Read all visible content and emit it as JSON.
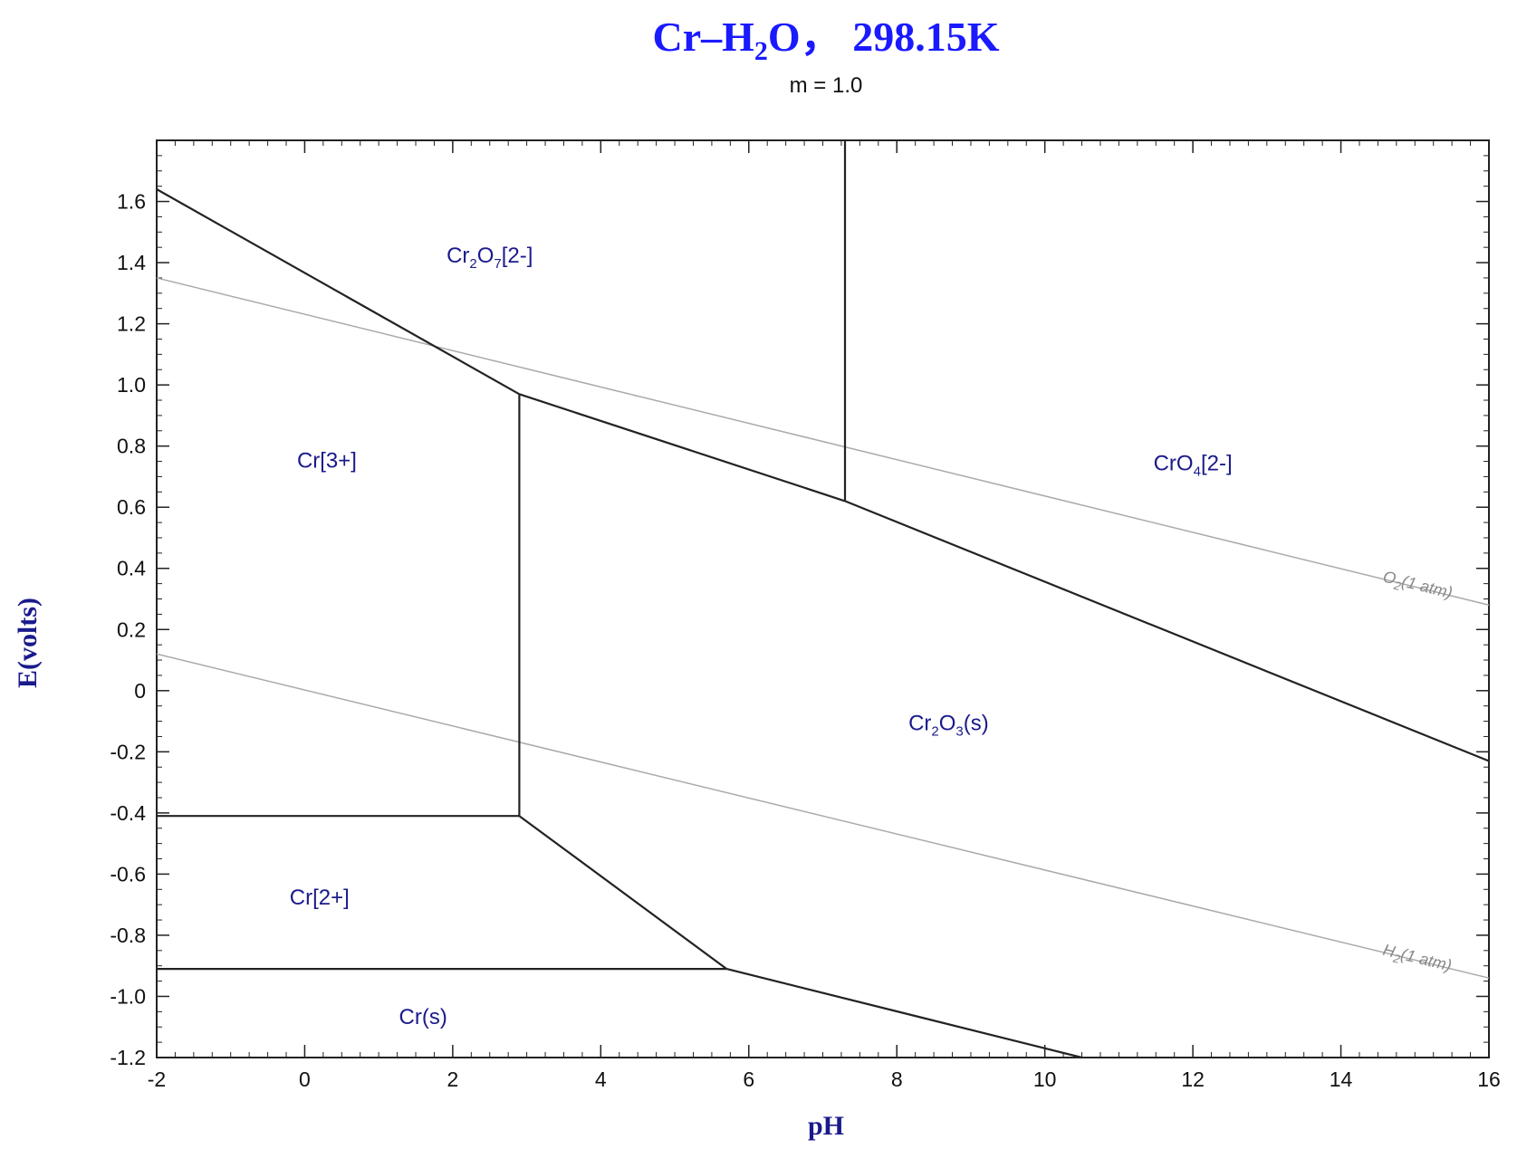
{
  "chart_data": {
    "type": "line",
    "title_parts": {
      "t1": "Cr–H",
      "t2": "2",
      "t3": "O，  298.15K"
    },
    "subtitle": "m = 1.0",
    "xlabel": "pH",
    "ylabel": "E(volts)",
    "xlim": [
      -2,
      16
    ],
    "ylim": [
      -1.2,
      1.8
    ],
    "xticks": [
      -2,
      0,
      2,
      4,
      6,
      8,
      10,
      12,
      14,
      16
    ],
    "xtick_labels": [
      "-2",
      "0",
      "2",
      "4",
      "6",
      "8",
      "10",
      "12",
      "14",
      "16"
    ],
    "yticks": [
      -1.2,
      -1.0,
      -0.8,
      -0.6,
      -0.4,
      -0.2,
      0,
      0.2,
      0.4,
      0.6,
      0.8,
      1.0,
      1.2,
      1.4,
      1.6
    ],
    "ytick_labels": [
      "-1.2",
      "-1.0",
      "-0.8",
      "-0.6",
      "-0.4",
      "-0.2",
      "0",
      "0.2",
      "0.4",
      "0.6",
      "0.8",
      "1.0",
      "1.2",
      "1.4",
      "1.6"
    ],
    "grid": false,
    "boundaries": [
      {
        "points": [
          [
            -2,
            1.64
          ],
          [
            2.9,
            0.97
          ]
        ]
      },
      {
        "points": [
          [
            2.9,
            0.97
          ],
          [
            7.3,
            0.62
          ]
        ]
      },
      {
        "points": [
          [
            7.3,
            0.62
          ],
          [
            16,
            -0.23
          ]
        ]
      },
      {
        "points": [
          [
            7.3,
            0.62
          ],
          [
            7.3,
            1.8
          ]
        ]
      },
      {
        "points": [
          [
            2.9,
            0.97
          ],
          [
            2.9,
            -0.41
          ]
        ]
      },
      {
        "points": [
          [
            -2,
            -0.41
          ],
          [
            2.9,
            -0.41
          ]
        ]
      },
      {
        "points": [
          [
            2.9,
            -0.41
          ],
          [
            5.7,
            -0.91
          ]
        ]
      },
      {
        "points": [
          [
            -2,
            -0.91
          ],
          [
            5.7,
            -0.91
          ]
        ]
      },
      {
        "points": [
          [
            5.7,
            -0.91
          ],
          [
            10.5,
            -1.2
          ]
        ]
      }
    ],
    "reference_lines": [
      {
        "name_main": "O",
        "name_sub": "2",
        "name_rest": "(1 atm)",
        "points": [
          [
            -2,
            1.35
          ],
          [
            16,
            0.28
          ]
        ]
      },
      {
        "name_main": "H",
        "name_sub": "2",
        "name_rest": "(1 atm)",
        "points": [
          [
            -2,
            0.12
          ],
          [
            16,
            -0.94
          ]
        ]
      }
    ],
    "regions": [
      {
        "main": "Cr",
        "sub": "2",
        "main2": "O",
        "sub2": "7",
        "rest": "[2-]",
        "at": [
          2.5,
          1.4
        ]
      },
      {
        "main": "Cr[3+]",
        "sub": "",
        "main2": "",
        "sub2": "",
        "rest": "",
        "at": [
          0.3,
          0.73
        ]
      },
      {
        "main": "CrO",
        "sub": "4",
        "main2": "",
        "sub2": "",
        "rest": "[2-]",
        "at": [
          12.0,
          0.72
        ]
      },
      {
        "main": "Cr",
        "sub": "2",
        "main2": "O",
        "sub2": "3",
        "rest": "(s)",
        "at": [
          8.7,
          -0.13
        ]
      },
      {
        "main": "Cr[2+]",
        "sub": "",
        "main2": "",
        "sub2": "",
        "rest": "",
        "at": [
          0.2,
          -0.7
        ]
      },
      {
        "main": "Cr(s)",
        "sub": "",
        "main2": "",
        "sub2": "",
        "rest": "",
        "at": [
          1.6,
          -1.09
        ]
      }
    ],
    "colors": {
      "title": "#1a1aff",
      "axis_label": "#1a1a8c",
      "region_label": "#1a1a8c",
      "boundary": "#222222",
      "reference": "#aaaaaa"
    }
  }
}
